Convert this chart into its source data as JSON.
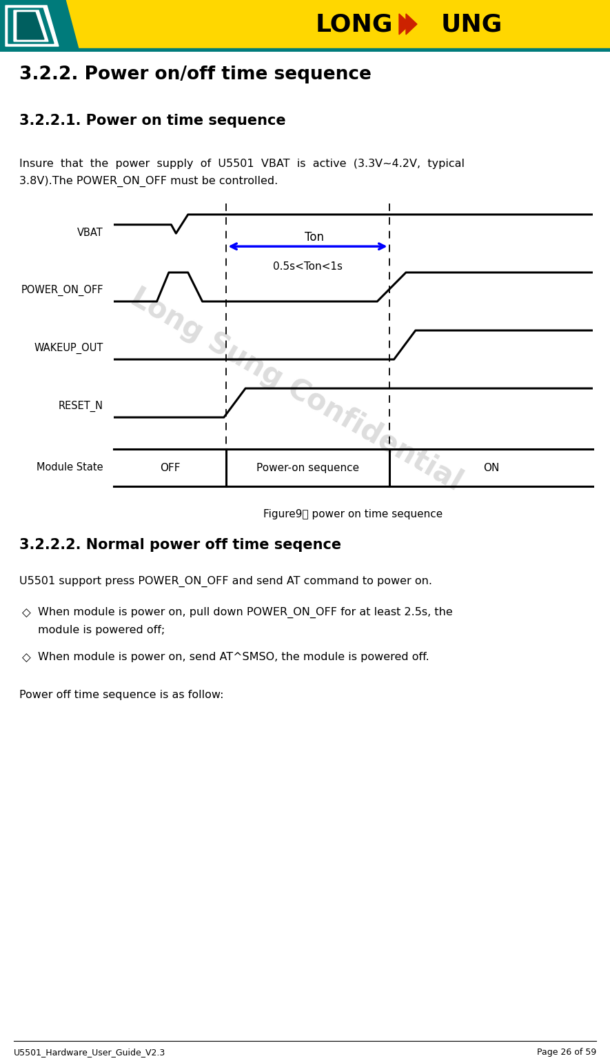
{
  "title_main": "3.2.2. Power on/off time sequence",
  "title_sub": "3.2.2.1. Power on time sequence",
  "title_sub2": "3.2.2.2. Normal power off time seqence",
  "para1_line1": "Insure  that  the  power  supply  of  U5501  VBAT  is  active  (3.3V~4.2V,  typical",
  "para1_line2": "3.8V).The POWER_ON_OFF must be controlled.",
  "para2": "U5501 support press POWER_ON_OFF and send AT command to power on.",
  "bullet1_line1": "When module is power on, pull down POWER_ON_OFF for at least 2.5s, the",
  "bullet1_line2": "module is powered off;",
  "bullet2": "When module is power on, send AT^SMSO, the module is powered off.",
  "para3": "Power off time sequence is as follow:",
  "figure_caption": "Figure9： power on time sequence",
  "footer_left": "U5501_Hardware_User_Guide_V2.3",
  "footer_right": "Page 26 of 59",
  "header_yellow": "#FFD700",
  "header_teal": "#007B7B",
  "confidential_text": "Long Sung Confidential",
  "ton_label": "Ton",
  "ton_sublabel": "0.5s<Ton<1s",
  "bg_color": "#FFFFFF"
}
